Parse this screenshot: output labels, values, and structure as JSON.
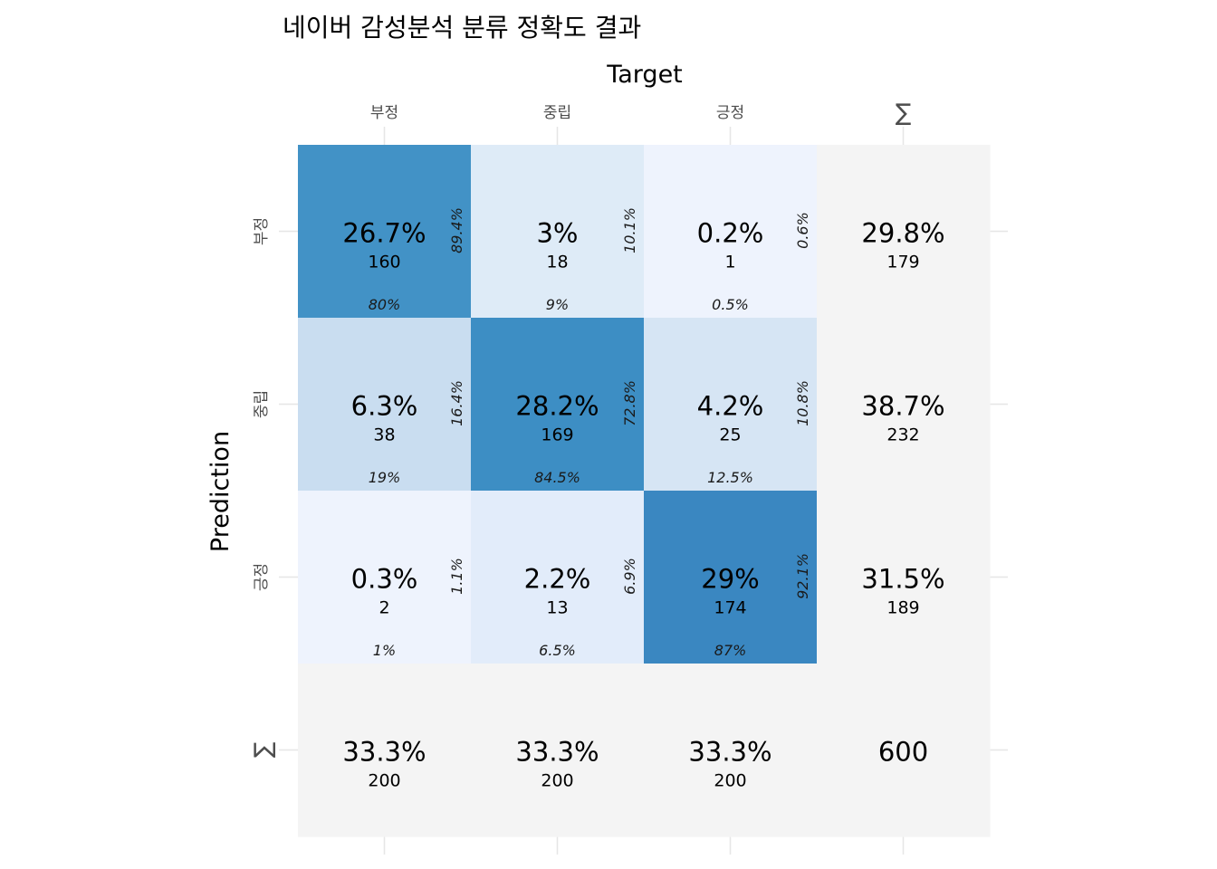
{
  "chart_data": {
    "type": "heatmap",
    "title": "네이버 감성분석 분류 정확도 결과",
    "xlabel": "Target",
    "ylabel": "Prediction",
    "columns": [
      "부정",
      "중립",
      "긍정",
      "∑"
    ],
    "rows": [
      "부정",
      "중립",
      "긍정",
      "∑"
    ],
    "cells": [
      [
        {
          "pct": "26.7%",
          "count": "160",
          "row_pct": "89.4%",
          "col_pct": "80%",
          "fill": "#4292c6"
        },
        {
          "pct": "3%",
          "count": "18",
          "row_pct": "10.1%",
          "col_pct": "9%",
          "fill": "#deebf7"
        },
        {
          "pct": "0.2%",
          "count": "1",
          "row_pct": "0.6%",
          "col_pct": "0.5%",
          "fill": "#eef3fd"
        },
        {
          "pct": "29.8%",
          "count": "179",
          "row_pct": "",
          "col_pct": "",
          "fill": "#f4f4f4"
        }
      ],
      [
        {
          "pct": "6.3%",
          "count": "38",
          "row_pct": "16.4%",
          "col_pct": "19%",
          "fill": "#c9ddf0"
        },
        {
          "pct": "28.2%",
          "count": "169",
          "row_pct": "72.8%",
          "col_pct": "84.5%",
          "fill": "#3d8ec4"
        },
        {
          "pct": "4.2%",
          "count": "25",
          "row_pct": "10.8%",
          "col_pct": "12.5%",
          "fill": "#d6e5f4"
        },
        {
          "pct": "38.7%",
          "count": "232",
          "row_pct": "",
          "col_pct": "",
          "fill": "#f4f4f4"
        }
      ],
      [
        {
          "pct": "0.3%",
          "count": "2",
          "row_pct": "1.1%",
          "col_pct": "1%",
          "fill": "#eef3fd"
        },
        {
          "pct": "2.2%",
          "count": "13",
          "row_pct": "6.9%",
          "col_pct": "6.5%",
          "fill": "#e2ecfa"
        },
        {
          "pct": "29%",
          "count": "174",
          "row_pct": "92.1%",
          "col_pct": "87%",
          "fill": "#3a87c1"
        },
        {
          "pct": "31.5%",
          "count": "189",
          "row_pct": "",
          "col_pct": "",
          "fill": "#f4f4f4"
        }
      ],
      [
        {
          "pct": "33.3%",
          "count": "200",
          "row_pct": "",
          "col_pct": "",
          "fill": "#f4f4f4"
        },
        {
          "pct": "33.3%",
          "count": "200",
          "row_pct": "",
          "col_pct": "",
          "fill": "#f4f4f4"
        },
        {
          "pct": "33.3%",
          "count": "200",
          "row_pct": "",
          "col_pct": "",
          "fill": "#f4f4f4"
        },
        {
          "pct": "600",
          "count": "",
          "row_pct": "",
          "col_pct": "",
          "fill": "#f4f4f4"
        }
      ]
    ],
    "grid": true,
    "legend": "none"
  }
}
